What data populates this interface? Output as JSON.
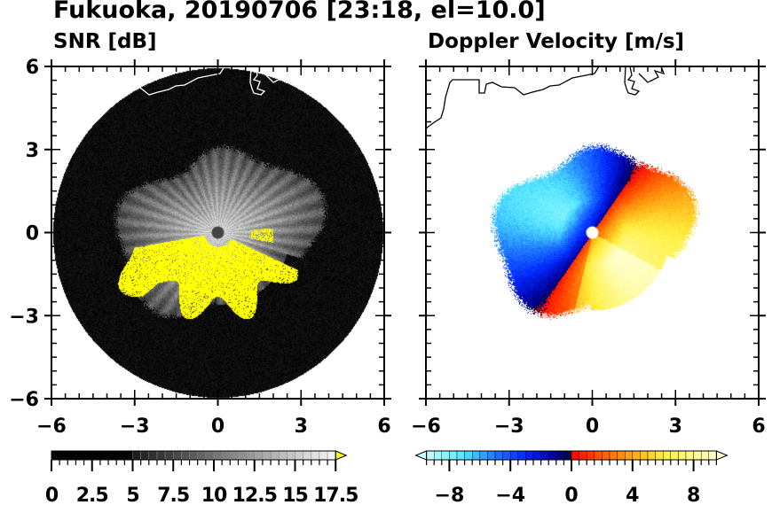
{
  "title": "Fukuoka, 20190706 [23:18, el=10.0]",
  "chart_data": [
    {
      "type": "heatmap",
      "title": "SNR [dB]",
      "xlim": [
        -6,
        6
      ],
      "ylim": [
        -6,
        6
      ],
      "xticks": [
        "-6",
        "-3",
        "0",
        "3",
        "6"
      ],
      "yticks": [
        "6",
        "3",
        "0",
        "-3",
        "-6"
      ],
      "colorbar": {
        "range": [
          0,
          18
        ],
        "step": 0.5,
        "tick_labels": [
          "0",
          "2.5",
          "5",
          "7.5",
          "10",
          "12.5",
          "15",
          "17.5"
        ],
        "tick_values": [
          0,
          2.5,
          5,
          7.5,
          10,
          12.5,
          15,
          17.5
        ],
        "colors": {
          "low": "#000000",
          "high": "#ffffff",
          "over": "#ffff00"
        }
      }
    },
    {
      "type": "heatmap",
      "title": "Doppler Velocity [m/s]",
      "xlim": [
        -6,
        6
      ],
      "ylim": [
        -6,
        6
      ],
      "xticks": [
        "-6",
        "-3",
        "0",
        "3",
        "6"
      ],
      "colorbar": {
        "range": [
          -9.5,
          9.5
        ],
        "step": 0.5,
        "tick_labels": [
          "−8",
          "−4",
          "0",
          "4",
          "8"
        ],
        "tick_values": [
          -8,
          -4,
          0,
          4,
          8
        ],
        "colors": {
          "min": "#ccffff",
          "neg_mid": "#0033ff",
          "zero_neg": "#000033",
          "zero_pos": "#ff0000",
          "pos_mid": "#ff9900",
          "max": "#ffffcc"
        }
      }
    }
  ]
}
